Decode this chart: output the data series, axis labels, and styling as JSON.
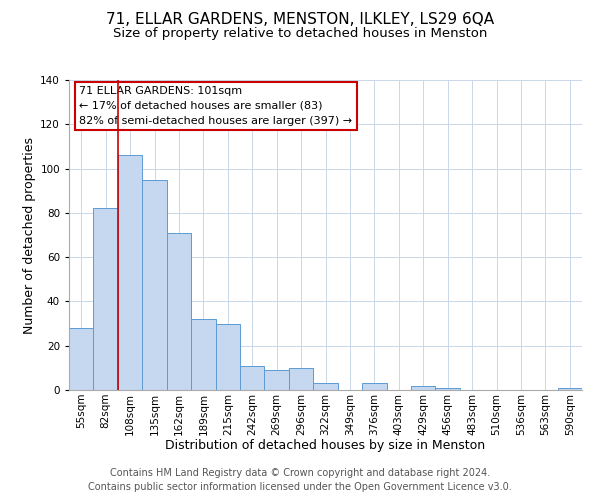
{
  "title": "71, ELLAR GARDENS, MENSTON, ILKLEY, LS29 6QA",
  "subtitle": "Size of property relative to detached houses in Menston",
  "xlabel": "Distribution of detached houses by size in Menston",
  "ylabel": "Number of detached properties",
  "bar_labels": [
    "55sqm",
    "82sqm",
    "108sqm",
    "135sqm",
    "162sqm",
    "189sqm",
    "215sqm",
    "242sqm",
    "269sqm",
    "296sqm",
    "322sqm",
    "349sqm",
    "376sqm",
    "403sqm",
    "429sqm",
    "456sqm",
    "483sqm",
    "510sqm",
    "536sqm",
    "563sqm",
    "590sqm"
  ],
  "bar_values": [
    28,
    82,
    106,
    95,
    71,
    32,
    30,
    11,
    9,
    10,
    3,
    0,
    3,
    0,
    2,
    1,
    0,
    0,
    0,
    0,
    1
  ],
  "bar_color": "#c5d8f0",
  "bar_edge_color": "#5b9bd5",
  "ylim": [
    0,
    140
  ],
  "yticks": [
    0,
    20,
    40,
    60,
    80,
    100,
    120,
    140
  ],
  "annotation_title": "71 ELLAR GARDENS: 101sqm",
  "annotation_line1": "← 17% of detached houses are smaller (83)",
  "annotation_line2": "82% of semi-detached houses are larger (397) →",
  "annotation_box_color": "#ffffff",
  "annotation_box_edge": "#cc0000",
  "footer_line1": "Contains HM Land Registry data © Crown copyright and database right 2024.",
  "footer_line2": "Contains public sector information licensed under the Open Government Licence v3.0.",
  "background_color": "#ffffff",
  "grid_color": "#c8d8e8",
  "title_fontsize": 11,
  "subtitle_fontsize": 9.5,
  "axis_label_fontsize": 9,
  "tick_fontsize": 7.5,
  "annotation_fontsize": 8,
  "footer_fontsize": 7
}
